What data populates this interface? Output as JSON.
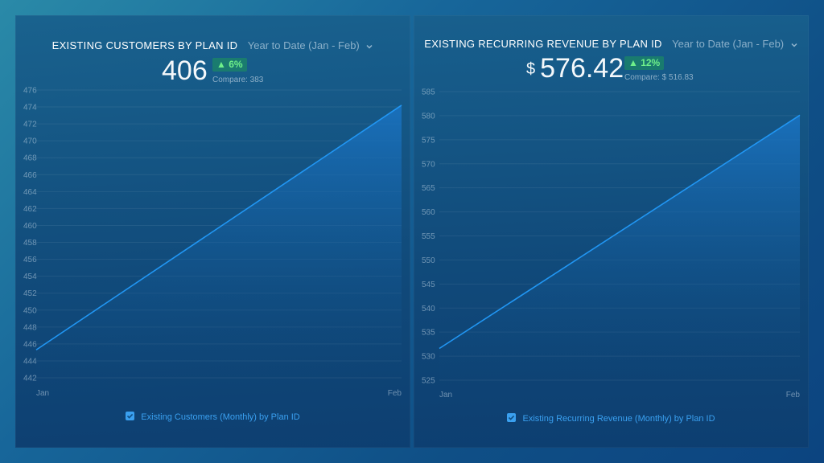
{
  "colors": {
    "line": "#2196f3",
    "grid": "rgba(255,255,255,0.07)",
    "tick": "rgba(190,210,225,0.55)",
    "badge_text": "#6ef08a"
  },
  "icons": {
    "range_dropdown": "chevron-down-icon",
    "badge_arrow": "triangle-up-icon",
    "legend_checkbox": "checkbox-checked-icon"
  },
  "widgets": [
    {
      "title": "EXISTING CUSTOMERS BY PLAN ID",
      "range": "Year to Date (Jan - Feb)",
      "currency": "",
      "value": "406",
      "badge": "▲ 6%",
      "compare": "Compare: 383",
      "legend": "Existing Customers (Monthly) by Plan ID"
    },
    {
      "title": "EXISTING RECURRING REVENUE BY PLAN ID",
      "range": "Year to Date (Jan - Feb)",
      "currency": "$",
      "value": "576.42",
      "badge": "▲ 12%",
      "compare": "Compare: $ 516.83",
      "legend": "Existing Recurring Revenue (Monthly) by Plan ID"
    }
  ],
  "chart_data": [
    {
      "type": "area",
      "title": "EXISTING CUSTOMERS BY PLAN ID",
      "categories": [
        "Jan",
        "Feb"
      ],
      "series": [
        {
          "name": "Existing Customers (Monthly) by Plan ID",
          "values": [
            445.3,
            474.2
          ]
        }
      ],
      "ylim": [
        442,
        476
      ],
      "yticks": [
        442,
        444,
        446,
        448,
        450,
        452,
        454,
        456,
        458,
        460,
        462,
        464,
        466,
        468,
        470,
        472,
        474,
        476
      ],
      "grid": true,
      "legend": "bottom-center"
    },
    {
      "type": "area",
      "title": "EXISTING RECURRING REVENUE BY PLAN ID",
      "categories": [
        "Jan",
        "Feb"
      ],
      "series": [
        {
          "name": "Existing Recurring Revenue (Monthly) by Plan ID",
          "values": [
            531.6,
            580.1
          ]
        }
      ],
      "ylim": [
        525,
        585
      ],
      "yticks": [
        525,
        530,
        535,
        540,
        545,
        550,
        555,
        560,
        565,
        570,
        575,
        580,
        585
      ],
      "grid": true,
      "legend": "bottom-center"
    }
  ]
}
